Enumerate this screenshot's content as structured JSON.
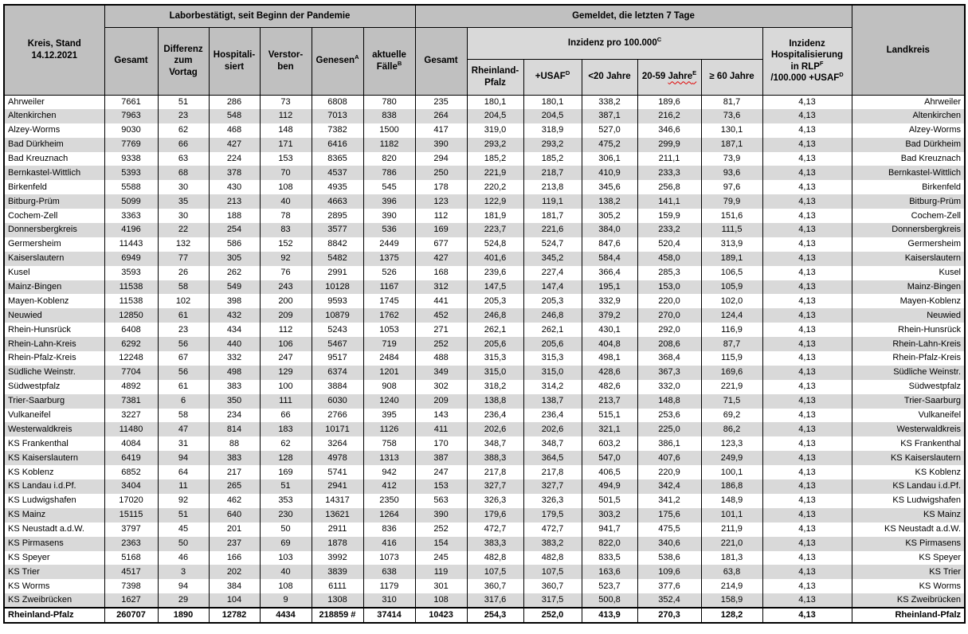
{
  "header": {
    "kreis_stand": "Kreis, Stand\n14.12.2021",
    "group_labor": "Laborbestätigt, seit Beginn der Pandemie",
    "group_gemeldet": "Gemeldet, die letzten 7 Tage",
    "gesamt": "Gesamt",
    "differenz": "Differenz\nzum\nVortag",
    "hospitalisiert": "Hospitali-\nsiert",
    "verstorben": "Verstor-\nben",
    "genesen": "Genesen",
    "genesen_sup": "A",
    "aktuelle": "aktuelle\nFälle",
    "aktuelle_sup": "B",
    "gesamt_7t": "Gesamt",
    "inzidenz_group": "Inzidenz pro 100.000",
    "inzidenz_sup": "C",
    "rlp": "Rheinland-\nPfalz",
    "usaf": "+USAF",
    "usaf_sup": "D",
    "unter20": "<20 Jahre",
    "jahre2059_prefix": "20-59 ",
    "jahre2059_word": "Jahre",
    "jahre2059_sup": "E",
    "ueber60": "≥ 60 Jahre",
    "hosp_lines": "Inzidenz\nHospitalisierung\nin RLP",
    "hosp_sup1": "F",
    "hosp_line2": "/100.000 +USAF",
    "hosp_sup2": "D",
    "landkreis": "Landkreis"
  },
  "colors": {
    "header_gray": "#c0c0c0",
    "subheader_gray": "#d9d9d9",
    "stripe_gray": "#d9d9d9",
    "border_black": "#000000",
    "spellcheck_red": "#e00000"
  },
  "table": {
    "rows": [
      {
        "kreis": "Ahrweiler",
        "values": [
          "7661",
          "51",
          "286",
          "73",
          "6808",
          "780",
          "235",
          "180,1",
          "180,1",
          "338,2",
          "189,6",
          "81,7",
          "4,13"
        ]
      },
      {
        "kreis": "Altenkirchen",
        "values": [
          "7963",
          "23",
          "548",
          "112",
          "7013",
          "838",
          "264",
          "204,5",
          "204,5",
          "387,1",
          "216,2",
          "73,6",
          "4,13"
        ]
      },
      {
        "kreis": "Alzey-Worms",
        "values": [
          "9030",
          "62",
          "468",
          "148",
          "7382",
          "1500",
          "417",
          "319,0",
          "318,9",
          "527,0",
          "346,6",
          "130,1",
          "4,13"
        ]
      },
      {
        "kreis": "Bad Dürkheim",
        "values": [
          "7769",
          "66",
          "427",
          "171",
          "6416",
          "1182",
          "390",
          "293,2",
          "293,2",
          "475,2",
          "299,9",
          "187,1",
          "4,13"
        ]
      },
      {
        "kreis": "Bad Kreuznach",
        "values": [
          "9338",
          "63",
          "224",
          "153",
          "8365",
          "820",
          "294",
          "185,2",
          "185,2",
          "306,1",
          "211,1",
          "73,9",
          "4,13"
        ]
      },
      {
        "kreis": "Bernkastel-Wittlich",
        "values": [
          "5393",
          "68",
          "378",
          "70",
          "4537",
          "786",
          "250",
          "221,9",
          "218,7",
          "410,9",
          "233,3",
          "93,6",
          "4,13"
        ]
      },
      {
        "kreis": "Birkenfeld",
        "values": [
          "5588",
          "30",
          "430",
          "108",
          "4935",
          "545",
          "178",
          "220,2",
          "213,8",
          "345,6",
          "256,8",
          "97,6",
          "4,13"
        ]
      },
      {
        "kreis": "Bitburg-Prüm",
        "values": [
          "5099",
          "35",
          "213",
          "40",
          "4663",
          "396",
          "123",
          "122,9",
          "119,1",
          "138,2",
          "141,1",
          "79,9",
          "4,13"
        ]
      },
      {
        "kreis": "Cochem-Zell",
        "values": [
          "3363",
          "30",
          "188",
          "78",
          "2895",
          "390",
          "112",
          "181,9",
          "181,7",
          "305,2",
          "159,9",
          "151,6",
          "4,13"
        ]
      },
      {
        "kreis": "Donnersbergkreis",
        "values": [
          "4196",
          "22",
          "254",
          "83",
          "3577",
          "536",
          "169",
          "223,7",
          "221,6",
          "384,0",
          "233,2",
          "111,5",
          "4,13"
        ]
      },
      {
        "kreis": "Germersheim",
        "values": [
          "11443",
          "132",
          "586",
          "152",
          "8842",
          "2449",
          "677",
          "524,8",
          "524,7",
          "847,6",
          "520,4",
          "313,9",
          "4,13"
        ]
      },
      {
        "kreis": "Kaiserslautern",
        "values": [
          "6949",
          "77",
          "305",
          "92",
          "5482",
          "1375",
          "427",
          "401,6",
          "345,2",
          "584,4",
          "458,0",
          "189,1",
          "4,13"
        ]
      },
      {
        "kreis": "Kusel",
        "values": [
          "3593",
          "26",
          "262",
          "76",
          "2991",
          "526",
          "168",
          "239,6",
          "227,4",
          "366,4",
          "285,3",
          "106,5",
          "4,13"
        ]
      },
      {
        "kreis": "Mainz-Bingen",
        "values": [
          "11538",
          "58",
          "549",
          "243",
          "10128",
          "1167",
          "312",
          "147,5",
          "147,4",
          "195,1",
          "153,0",
          "105,9",
          "4,13"
        ]
      },
      {
        "kreis": "Mayen-Koblenz",
        "values": [
          "11538",
          "102",
          "398",
          "200",
          "9593",
          "1745",
          "441",
          "205,3",
          "205,3",
          "332,9",
          "220,0",
          "102,0",
          "4,13"
        ]
      },
      {
        "kreis": "Neuwied",
        "values": [
          "12850",
          "61",
          "432",
          "209",
          "10879",
          "1762",
          "452",
          "246,8",
          "246,8",
          "379,2",
          "270,0",
          "124,4",
          "4,13"
        ]
      },
      {
        "kreis": "Rhein-Hunsrück",
        "values": [
          "6408",
          "23",
          "434",
          "112",
          "5243",
          "1053",
          "271",
          "262,1",
          "262,1",
          "430,1",
          "292,0",
          "116,9",
          "4,13"
        ]
      },
      {
        "kreis": "Rhein-Lahn-Kreis",
        "values": [
          "6292",
          "56",
          "440",
          "106",
          "5467",
          "719",
          "252",
          "205,6",
          "205,6",
          "404,8",
          "208,6",
          "87,7",
          "4,13"
        ]
      },
      {
        "kreis": "Rhein-Pfalz-Kreis",
        "values": [
          "12248",
          "67",
          "332",
          "247",
          "9517",
          "2484",
          "488",
          "315,3",
          "315,3",
          "498,1",
          "368,4",
          "115,9",
          "4,13"
        ]
      },
      {
        "kreis": "Südliche Weinstr.",
        "values": [
          "7704",
          "56",
          "498",
          "129",
          "6374",
          "1201",
          "349",
          "315,0",
          "315,0",
          "428,6",
          "367,3",
          "169,6",
          "4,13"
        ]
      },
      {
        "kreis": "Südwestpfalz",
        "values": [
          "4892",
          "61",
          "383",
          "100",
          "3884",
          "908",
          "302",
          "318,2",
          "314,2",
          "482,6",
          "332,0",
          "221,9",
          "4,13"
        ]
      },
      {
        "kreis": "Trier-Saarburg",
        "values": [
          "7381",
          "6",
          "350",
          "111",
          "6030",
          "1240",
          "209",
          "138,8",
          "138,7",
          "213,7",
          "148,8",
          "71,5",
          "4,13"
        ]
      },
      {
        "kreis": "Vulkaneifel",
        "values": [
          "3227",
          "58",
          "234",
          "66",
          "2766",
          "395",
          "143",
          "236,4",
          "236,4",
          "515,1",
          "253,6",
          "69,2",
          "4,13"
        ]
      },
      {
        "kreis": "Westerwaldkreis",
        "values": [
          "11480",
          "47",
          "814",
          "183",
          "10171",
          "1126",
          "411",
          "202,6",
          "202,6",
          "321,1",
          "225,0",
          "86,2",
          "4,13"
        ]
      },
      {
        "kreis": "KS Frankenthal",
        "values": [
          "4084",
          "31",
          "88",
          "62",
          "3264",
          "758",
          "170",
          "348,7",
          "348,7",
          "603,2",
          "386,1",
          "123,3",
          "4,13"
        ]
      },
      {
        "kreis": "KS Kaiserslautern",
        "values": [
          "6419",
          "94",
          "383",
          "128",
          "4978",
          "1313",
          "387",
          "388,3",
          "364,5",
          "547,0",
          "407,6",
          "249,9",
          "4,13"
        ]
      },
      {
        "kreis": "KS Koblenz",
        "values": [
          "6852",
          "64",
          "217",
          "169",
          "5741",
          "942",
          "247",
          "217,8",
          "217,8",
          "406,5",
          "220,9",
          "100,1",
          "4,13"
        ]
      },
      {
        "kreis": "KS Landau i.d.Pf.",
        "values": [
          "3404",
          "11",
          "265",
          "51",
          "2941",
          "412",
          "153",
          "327,7",
          "327,7",
          "494,9",
          "342,4",
          "186,8",
          "4,13"
        ]
      },
      {
        "kreis": "KS Ludwigshafen",
        "values": [
          "17020",
          "92",
          "462",
          "353",
          "14317",
          "2350",
          "563",
          "326,3",
          "326,3",
          "501,5",
          "341,2",
          "148,9",
          "4,13"
        ]
      },
      {
        "kreis": "KS Mainz",
        "values": [
          "15115",
          "51",
          "640",
          "230",
          "13621",
          "1264",
          "390",
          "179,6",
          "179,5",
          "303,2",
          "175,6",
          "101,1",
          "4,13"
        ]
      },
      {
        "kreis": "KS Neustadt a.d.W.",
        "values": [
          "3797",
          "45",
          "201",
          "50",
          "2911",
          "836",
          "252",
          "472,7",
          "472,7",
          "941,7",
          "475,5",
          "211,9",
          "4,13"
        ]
      },
      {
        "kreis": "KS Pirmasens",
        "values": [
          "2363",
          "50",
          "237",
          "69",
          "1878",
          "416",
          "154",
          "383,3",
          "383,2",
          "822,0",
          "340,6",
          "221,0",
          "4,13"
        ]
      },
      {
        "kreis": "KS Speyer",
        "values": [
          "5168",
          "46",
          "166",
          "103",
          "3992",
          "1073",
          "245",
          "482,8",
          "482,8",
          "833,5",
          "538,6",
          "181,3",
          "4,13"
        ]
      },
      {
        "kreis": "KS Trier",
        "values": [
          "4517",
          "3",
          "202",
          "40",
          "3839",
          "638",
          "119",
          "107,5",
          "107,5",
          "163,6",
          "109,6",
          "63,8",
          "4,13"
        ]
      },
      {
        "kreis": "KS Worms",
        "values": [
          "7398",
          "94",
          "384",
          "108",
          "6111",
          "1179",
          "301",
          "360,7",
          "360,7",
          "523,7",
          "377,6",
          "214,9",
          "4,13"
        ]
      },
      {
        "kreis": "KS Zweibrücken",
        "values": [
          "1627",
          "29",
          "104",
          "9",
          "1308",
          "310",
          "108",
          "317,6",
          "317,5",
          "500,8",
          "352,4",
          "158,9",
          "4,13"
        ]
      }
    ],
    "total": {
      "kreis": "Rheinland-Pfalz",
      "values": [
        "260707",
        "1890",
        "12782",
        "4434",
        "218859 #",
        "37414",
        "10423",
        "254,3",
        "252,0",
        "413,9",
        "270,3",
        "128,2",
        "4,13"
      ]
    }
  }
}
